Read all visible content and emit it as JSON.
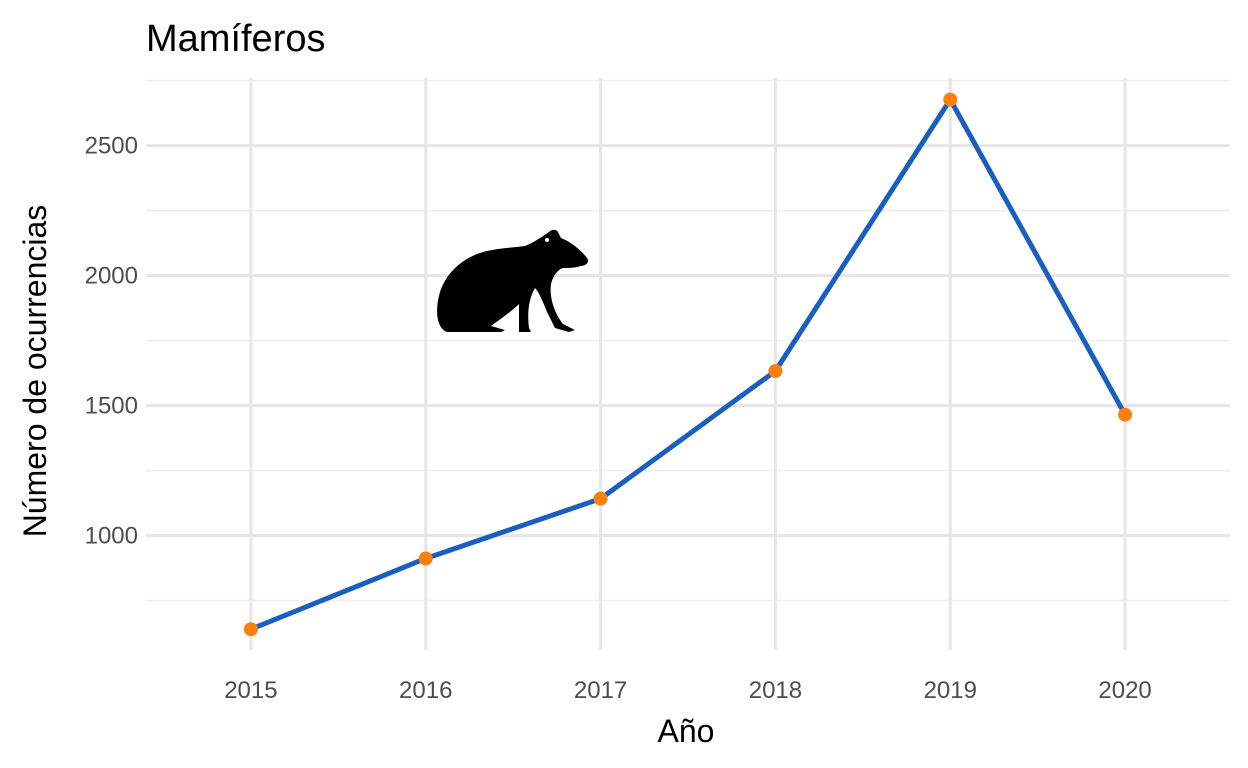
{
  "chart_data": {
    "type": "line",
    "title": "Mamíferos",
    "xlabel": "Año",
    "ylabel": "Número de ocurrencias",
    "x": [
      2015,
      2016,
      2017,
      2018,
      2019,
      2020
    ],
    "series": [
      {
        "values": [
          640,
          912,
          1142,
          1633,
          2677,
          1465
        ]
      }
    ],
    "x_ticks": [
      "2015",
      "2016",
      "2017",
      "2018",
      "2019",
      "2020"
    ],
    "y_ticks": [
      1000,
      1500,
      2000,
      2500
    ],
    "y_tick_labels": [
      "1000",
      "1500",
      "2000",
      "2500"
    ],
    "xlim": [
      2014.4,
      2020.6
    ],
    "ylim": [
      560,
      2760
    ],
    "grid": true,
    "legend": "none",
    "line_color": "#1a5fbf",
    "point_color": "#ff7f0e",
    "icon": "capybara-silhouette-icon"
  }
}
